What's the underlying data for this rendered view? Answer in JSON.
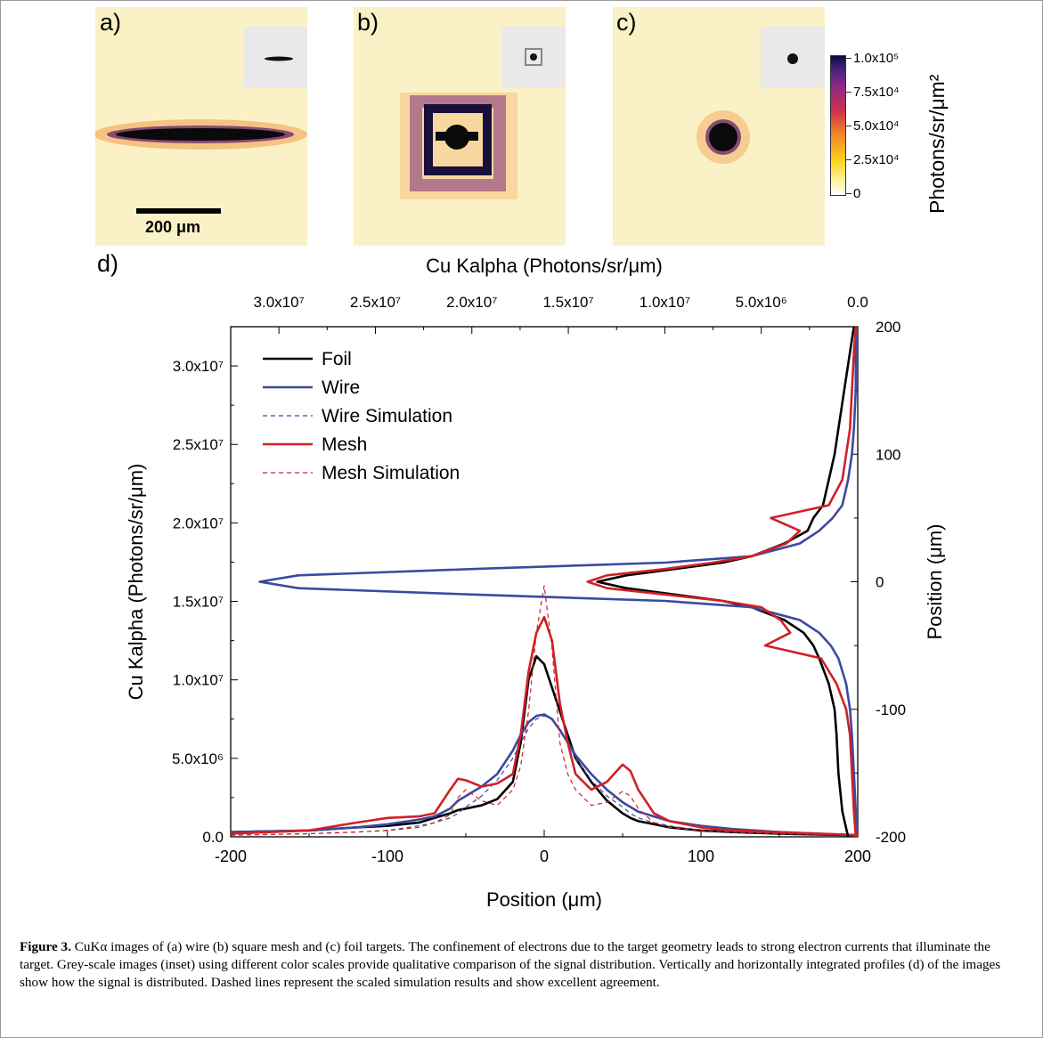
{
  "panels": [
    {
      "letter": "a)",
      "scalebar": "200 μm"
    },
    {
      "letter": "b)"
    },
    {
      "letter": "c)"
    }
  ],
  "colorbar": {
    "title": "Photons/sr/μm²",
    "ticks": [
      "1.0x10⁵",
      "7.5x10⁴",
      "5.0x10⁴",
      "2.5x10⁴",
      "0"
    ]
  },
  "chart_data": {
    "type": "line",
    "panel_letter": "d)",
    "bottom_xlabel": "Position (μm)",
    "left_ylabel": "Cu Kalpha (Photons/sr/μm)",
    "top_xlabel": "Cu Kalpha (Photons/sr/μm)",
    "right_ylabel": "Position (μm)",
    "bottom_xlim": [
      -200,
      200
    ],
    "left_ylim": [
      0,
      32500000
    ],
    "top_xlim": [
      32500000,
      0
    ],
    "right_ylim": [
      -200,
      200
    ],
    "bottom_ticks": [
      "-200",
      "-100",
      "0",
      "100",
      "200"
    ],
    "left_ticks": [
      "0.0",
      "5.0x10⁶",
      "1.0x10⁷",
      "1.5x10⁷",
      "2.0x10⁷",
      "2.5x10⁷",
      "3.0x10⁷"
    ],
    "top_ticks": [
      "3.0x10⁷",
      "2.5x10⁷",
      "2.0x10⁷",
      "1.5x10⁷",
      "1.0x10⁷",
      "5.0x10⁶",
      "0.0"
    ],
    "right_ticks": [
      "200",
      "100",
      "0",
      "-100",
      "-200"
    ],
    "legend": [
      "Foil",
      "Wire",
      "Wire Simulation",
      "Mesh",
      "Mesh Simulation"
    ],
    "legend_position": "top-left",
    "colors": {
      "foil": "#000000",
      "wire": "#3b4aa0",
      "mesh": "#d02027"
    },
    "horizontal_profiles": {
      "x": [
        -200,
        -150,
        -120,
        -100,
        -80,
        -70,
        -60,
        -55,
        -50,
        -40,
        -30,
        -20,
        -15,
        -10,
        -5,
        0,
        5,
        10,
        15,
        20,
        30,
        40,
        50,
        55,
        60,
        70,
        80,
        100,
        120,
        150,
        200
      ],
      "series": [
        {
          "name": "Foil",
          "values": [
            300000,
            400000,
            600000,
            700000,
            900000,
            1200000,
            1500000,
            1700000,
            1800000,
            2000000,
            2400000,
            3500000,
            6000000,
            10000000,
            11500000,
            11000000,
            9500000,
            8000000,
            6500000,
            5000000,
            3500000,
            2300000,
            1500000,
            1200000,
            1000000,
            800000,
            600000,
            400000,
            300000,
            200000,
            100000
          ]
        },
        {
          "name": "Wire",
          "values": [
            300000,
            400000,
            600000,
            800000,
            1100000,
            1300000,
            1800000,
            2300000,
            2600000,
            3200000,
            4000000,
            5500000,
            6500000,
            7300000,
            7700000,
            7800000,
            7500000,
            6800000,
            6000000,
            5200000,
            4000000,
            3000000,
            2200000,
            1900000,
            1600000,
            1300000,
            1000000,
            700000,
            500000,
            300000,
            100000
          ]
        },
        {
          "name": "Wire Simulation",
          "values": [
            100000,
            200000,
            300000,
            400000,
            700000,
            900000,
            1200000,
            1500000,
            1900000,
            2600000,
            3600000,
            5000000,
            6000000,
            6900000,
            7500000,
            7700000,
            7500000,
            6900000,
            6000000,
            5000000,
            3600000,
            2600000,
            1900000,
            1500000,
            1200000,
            900000,
            700000,
            400000,
            300000,
            200000,
            100000
          ]
        },
        {
          "name": "Mesh",
          "values": [
            200000,
            400000,
            900000,
            1200000,
            1300000,
            1500000,
            3000000,
            3700000,
            3600000,
            3200000,
            3400000,
            4000000,
            6500000,
            10500000,
            13000000,
            14000000,
            12500000,
            8500000,
            6000000,
            4000000,
            3000000,
            3500000,
            4600000,
            4200000,
            3000000,
            1500000,
            1000000,
            600000,
            400000,
            300000,
            100000
          ]
        },
        {
          "name": "Mesh Simulation",
          "values": [
            100000,
            200000,
            300000,
            400000,
            600000,
            900000,
            1400000,
            2500000,
            3000000,
            2300000,
            2000000,
            3000000,
            4500000,
            8000000,
            13000000,
            16000000,
            12000000,
            6000000,
            4000000,
            3000000,
            2000000,
            2200000,
            2900000,
            2600000,
            1800000,
            900000,
            600000,
            400000,
            300000,
            200000,
            100000
          ]
        }
      ]
    },
    "vertical_profiles": {
      "position": [
        -200,
        -180,
        -150,
        -120,
        -100,
        -80,
        -60,
        -50,
        -40,
        -30,
        -20,
        -15,
        -10,
        -5,
        0,
        5,
        10,
        15,
        20,
        30,
        40,
        50,
        60,
        80,
        100,
        120,
        150,
        180,
        200
      ],
      "series": [
        {
          "name": "Foil",
          "values": [
            500000,
            800000,
            1000000,
            1100000,
            1200000,
            1500000,
            2000000,
            2300000,
            2800000,
            3800000,
            5500000,
            7000000,
            9500000,
            12000000,
            13500000,
            12000000,
            9500000,
            7000000,
            5500000,
            3800000,
            2600000,
            2300000,
            1800000,
            1500000,
            1200000,
            1000000,
            700000,
            400000,
            200000
          ]
        },
        {
          "name": "Wire",
          "values": [
            100000,
            100000,
            200000,
            300000,
            400000,
            600000,
            1000000,
            1400000,
            2000000,
            3000000,
            5500000,
            10000000,
            20000000,
            29000000,
            31000000,
            29000000,
            20000000,
            10000000,
            5500000,
            3000000,
            2000000,
            1300000,
            800000,
            500000,
            300000,
            200000,
            100000,
            100000,
            100000
          ]
        },
        {
          "name": "Mesh",
          "values": [
            100000,
            200000,
            300000,
            400000,
            600000,
            1100000,
            1900000,
            4800000,
            3500000,
            4000000,
            5000000,
            7000000,
            10000000,
            13000000,
            14000000,
            13000000,
            10000000,
            7500000,
            5500000,
            3700000,
            3000000,
            4500000,
            1500000,
            800000,
            600000,
            400000,
            300000,
            200000,
            100000
          ]
        }
      ]
    }
  },
  "caption": {
    "label": "Figure 3.",
    "text": " CuKα images of (a) wire (b) square mesh and (c) foil targets. The confinement of electrons due to the target geometry leads to strong electron currents that illuminate the target. Grey-scale images (inset) using different color scales provide qualitative comparison of the signal distribution. Vertically and horizontally integrated profiles (d) of the images show how the signal is distributed. Dashed lines represent the scaled simulation results and show excellent agreement."
  }
}
